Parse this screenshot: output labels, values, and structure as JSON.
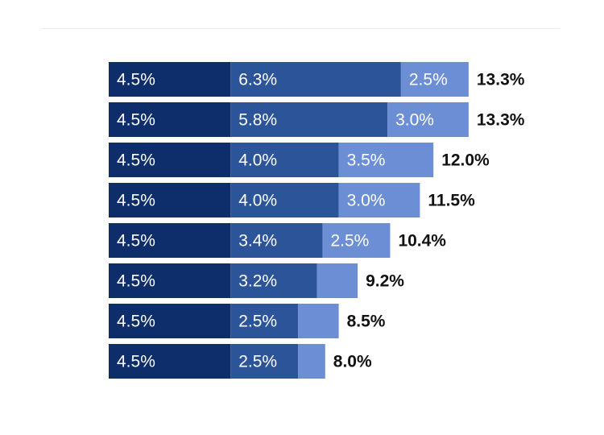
{
  "chart_data": {
    "type": "bar",
    "orientation": "horizontal",
    "stacked": true,
    "title": "",
    "xlabel": "",
    "ylabel": "",
    "value_unit": "%",
    "xlim": [
      0,
      14
    ],
    "grid": false,
    "legend": "none",
    "colors": [
      "#0d2d6b",
      "#2c5499",
      "#6b8ed4"
    ],
    "series": [
      {
        "values": [
          4.5,
          4.5,
          4.5,
          4.5,
          4.5,
          4.5,
          4.5,
          4.5
        ]
      },
      {
        "values": [
          6.3,
          5.8,
          4.0,
          4.0,
          3.4,
          3.2,
          2.5,
          2.5
        ]
      },
      {
        "values": [
          2.5,
          3.0,
          3.5,
          3.0,
          2.5,
          1.5,
          1.5,
          1.0
        ]
      }
    ],
    "segment_labels": [
      [
        "4.5%",
        "6.3%",
        "2.5%"
      ],
      [
        "4.5%",
        "5.8%",
        "3.0%"
      ],
      [
        "4.5%",
        "4.0%",
        "3.5%"
      ],
      [
        "4.5%",
        "4.0%",
        "3.0%"
      ],
      [
        "4.5%",
        "3.4%",
        "2.5%"
      ],
      [
        "4.5%",
        "3.2%",
        ""
      ],
      [
        "4.5%",
        "2.5%",
        ""
      ],
      [
        "4.5%",
        "2.5%",
        ""
      ]
    ],
    "totals": [
      "13.3%",
      "13.3%",
      "12.0%",
      "11.5%",
      "10.4%",
      "9.2%",
      "8.5%",
      "8.0%"
    ]
  }
}
